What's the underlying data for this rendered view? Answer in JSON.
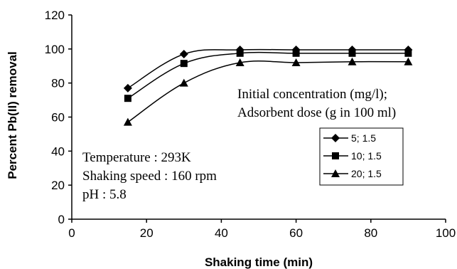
{
  "chart_data": {
    "type": "line",
    "xlabel": "Shaking time (min)",
    "ylabel": "Percent Pb(II) removal",
    "xlim": [
      0,
      100
    ],
    "ylim": [
      0,
      120
    ],
    "xticks": [
      0,
      20,
      40,
      60,
      80,
      100
    ],
    "yticks": [
      0,
      20,
      40,
      60,
      80,
      100,
      120
    ],
    "grid": false,
    "legend_title": [
      "Initial concentration (mg/l);",
      "Adsorbent dose  (g in 100 ml)"
    ],
    "legend_position": "right",
    "x": [
      15,
      30,
      45,
      60,
      75,
      90
    ],
    "series": [
      {
        "name": "5; 1.5",
        "marker": "diamond",
        "values": [
          77,
          97,
          99.5,
          99.5,
          99.5,
          99.5
        ]
      },
      {
        "name": "10; 1.5",
        "marker": "square",
        "values": [
          71,
          91.5,
          97.5,
          97.5,
          97.5,
          97.5
        ]
      },
      {
        "name": "20; 1.5",
        "marker": "triangle",
        "values": [
          57,
          80,
          92,
          92,
          92.5,
          92.5
        ]
      }
    ],
    "annotations": [
      "Temperature : 293K",
      "Shaking speed : 160 rpm",
      "pH : 5.8"
    ]
  }
}
